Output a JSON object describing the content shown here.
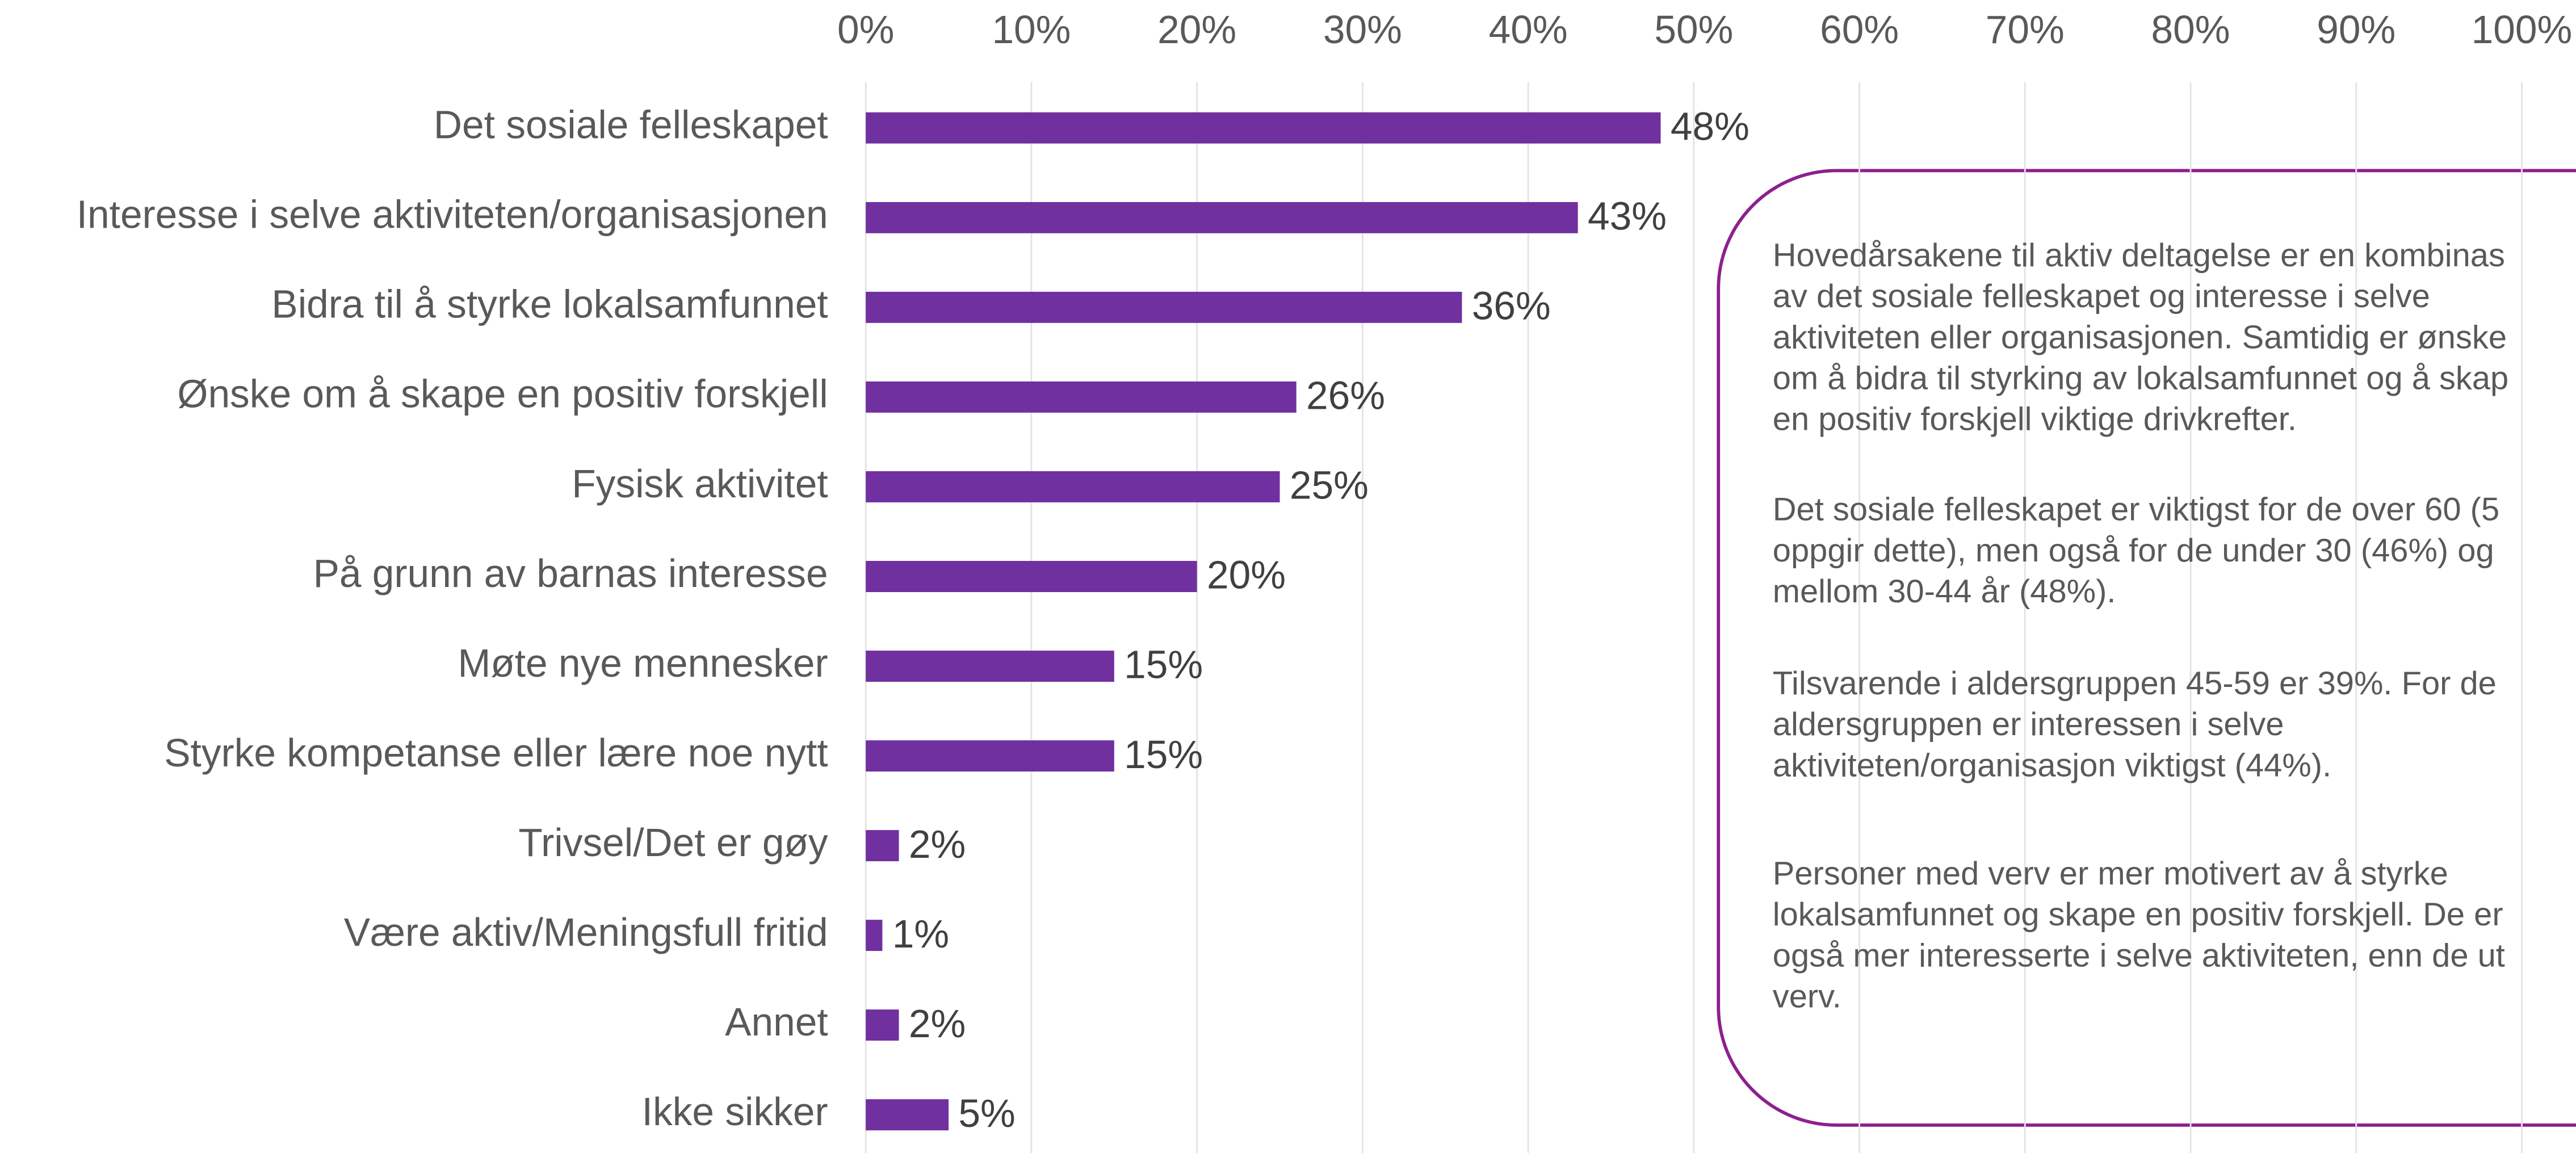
{
  "chart_data": {
    "type": "bar",
    "orientation": "horizontal",
    "categories": [
      "Det sosiale felleskapet",
      "Interesse i selve aktiviteten/organisasjonen",
      "Bidra til å styrke lokalsamfunnet",
      "Ønske om å skape en positiv forskjell",
      "Fysisk aktivitet",
      "På grunn av barnas interesse",
      "Møte nye mennesker",
      "Styrke kompetanse eller lære noe nytt",
      "Trivsel/Det er gøy",
      "Være aktiv/Meningsfull fritid",
      "Annet",
      "Ikke sikker"
    ],
    "values": [
      48,
      43,
      36,
      26,
      25,
      20,
      15,
      15,
      2,
      1,
      2,
      5
    ],
    "value_labels": [
      "48%",
      "43%",
      "36%",
      "26%",
      "25%",
      "20%",
      "15%",
      "15%",
      "2%",
      "1%",
      "2%",
      "5%"
    ],
    "color": "#7030a0",
    "xlim": [
      0,
      100
    ],
    "xticks": [
      {
        "value": 0,
        "label": "0%"
      },
      {
        "value": 10,
        "label": "10%"
      },
      {
        "value": 20,
        "label": "20%"
      },
      {
        "value": 30,
        "label": "30%"
      },
      {
        "value": 40,
        "label": "40%"
      },
      {
        "value": 50,
        "label": "50%"
      },
      {
        "value": 60,
        "label": "60%"
      },
      {
        "value": 70,
        "label": "70%"
      },
      {
        "value": 80,
        "label": "80%"
      },
      {
        "value": 90,
        "label": "90%"
      },
      {
        "value": 100,
        "label": "100%"
      }
    ],
    "grid": true,
    "annotation": [
      [
        "Hovedårsakene til aktiv deltagelse er en kombinas",
        "av det sosiale felleskapet og interesse i selve",
        "aktiviteten eller organisasjonen. Samtidig er ønske",
        "om å bidra til styrking av lokalsamfunnet og å skap",
        "en positiv forskjell viktige drivkrefter."
      ],
      [
        "Det sosiale felleskapet er viktigst for de over 60 (5",
        "oppgir dette), men også for de under 30 (46%) og",
        "mellom 30-44 år (48%)."
      ],
      [
        "Tilsvarende i aldersgruppen 45-59 er 39%. For de",
        "aldersgruppen er interessen i selve",
        "aktiviteten/organisasjon viktigst (44%)."
      ],
      [
        "Personer med verv er mer motivert av å styrke",
        "lokalsamfunnet og skape en positiv forskjell. De er",
        "også mer interesserte i selve aktiviteten, enn de ut",
        "verv."
      ]
    ]
  }
}
